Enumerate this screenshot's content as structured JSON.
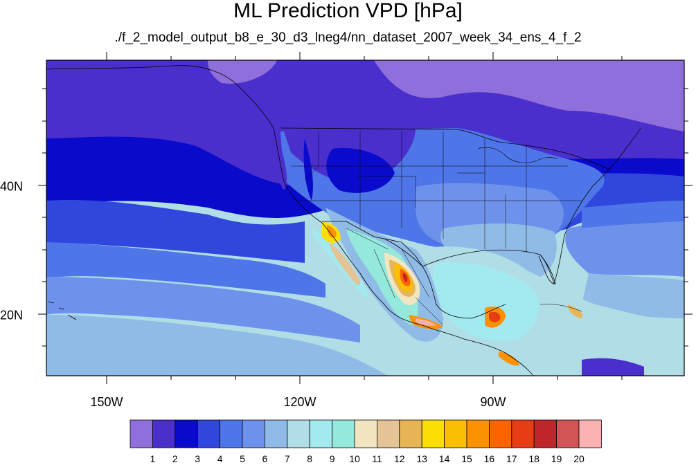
{
  "title": "ML Prediction VPD [hPa]",
  "subtitle": "./f_2_model_output_b8_e_30_d3_lneg4/nn_dataset_2007_week_34_ens_4_f_2",
  "map": {
    "lon_range": [
      -160,
      -60
    ],
    "lat_range": [
      10,
      60
    ],
    "lon_ticks": [
      {
        "lon": -150,
        "label": "150W"
      },
      {
        "lon": -120,
        "label": "120W"
      },
      {
        "lon": -90,
        "label": "90W"
      }
    ],
    "lat_ticks": [
      {
        "lat": 40,
        "label": "40N"
      },
      {
        "lat": 20,
        "label": "20N"
      }
    ]
  },
  "colorbar": {
    "colors": [
      "#8f6fdc",
      "#4a2fcc",
      "#0a0acc",
      "#2f47dc",
      "#4f76e8",
      "#6e92ec",
      "#8fbbe6",
      "#b0dde6",
      "#a3eaf0",
      "#94e8dc",
      "#f2e6c2",
      "#e4c396",
      "#e7b556",
      "#fce005",
      "#fcbe02",
      "#fb9204",
      "#fb6400",
      "#e73d14",
      "#c0252a",
      "#d25555",
      "#fbb1b1"
    ],
    "labels": [
      "1",
      "2",
      "3",
      "4",
      "5",
      "6",
      "7",
      "8",
      "9",
      "10",
      "11",
      "12",
      "13",
      "14",
      "15",
      "16",
      "17",
      "18",
      "19",
      "20"
    ]
  }
}
